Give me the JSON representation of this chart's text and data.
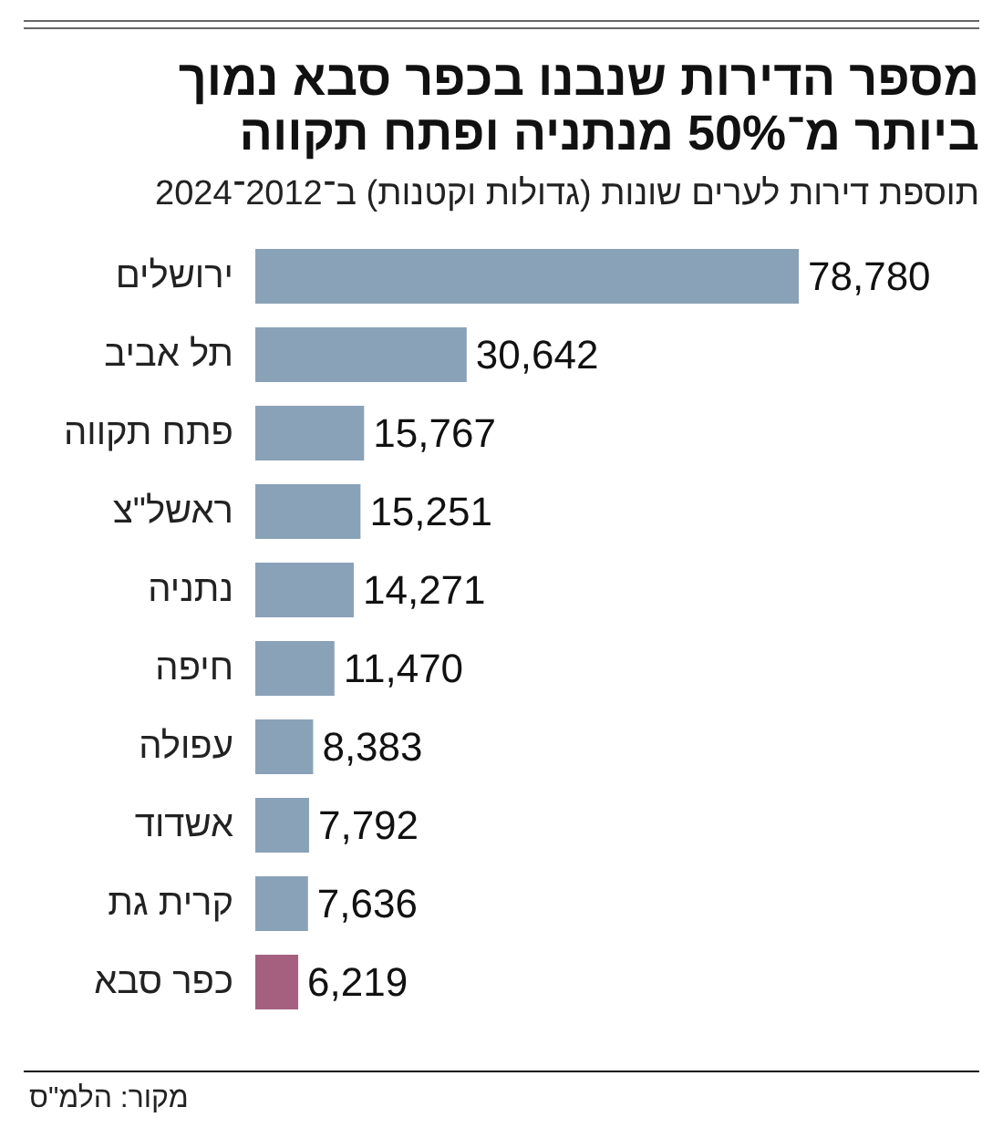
{
  "chart_data": {
    "type": "bar",
    "orientation": "horizontal",
    "title": "מספר הדירות שנבנו בכפר סבא נמוך\nביותר מ־50% מנתניה ופתח תקווה",
    "subtitle": "תוספת דירות לערים שונות (גדולות וקטנות) ב־2012־2024",
    "categories": [
      "ירושלים",
      "תל אביב",
      "פתח תקווה",
      "ראשל\"צ",
      "נתניה",
      "חיפה",
      "עפולה",
      "אשדוד",
      "קרית גת",
      "כפר סבא"
    ],
    "values": [
      78780,
      30642,
      15767,
      15251,
      14271,
      11470,
      8383,
      7792,
      7636,
      6219
    ],
    "colors": [
      "#8aa2b8",
      "#8aa2b8",
      "#8aa2b8",
      "#8aa2b8",
      "#8aa2b8",
      "#8aa2b8",
      "#8aa2b8",
      "#8aa2b8",
      "#8aa2b8",
      "#a5607f"
    ],
    "value_labels": [
      "78,780",
      "30,642",
      "15,767",
      "15,251",
      "14,271",
      "11,470",
      "8,383",
      "7,792",
      "7,636",
      "6,219"
    ],
    "annotations": [
      "מקור: הלמ\"ס"
    ]
  }
}
